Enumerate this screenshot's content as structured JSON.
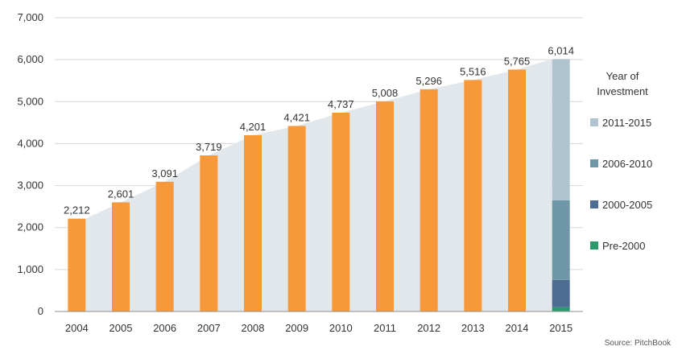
{
  "source_note": "Source: PitchBook",
  "legend_title_line1": "Year of",
  "legend_title_line2": "Investment",
  "colors": {
    "bar": "#F7993B",
    "area": "#E1E7EA",
    "grid": "#D6D6D6",
    "axis": "#8E8E8E",
    "text": "#333333"
  },
  "chart_data": {
    "type": "bar",
    "title": "",
    "xlabel": "",
    "ylabel": "",
    "ylim": [
      0,
      7000
    ],
    "yticks": [
      0,
      1000,
      2000,
      3000,
      4000,
      5000,
      6000,
      7000
    ],
    "ytick_labels": [
      "0",
      "1,000",
      "2,000",
      "3,000",
      "4,000",
      "5,000",
      "6,000",
      "7,000"
    ],
    "grid": true,
    "legend_position": "right",
    "categories": [
      "2004",
      "2005",
      "2006",
      "2007",
      "2008",
      "2009",
      "2010",
      "2011",
      "2012",
      "2013",
      "2014",
      "2015"
    ],
    "values": [
      2212,
      2601,
      3091,
      3719,
      4201,
      4421,
      4737,
      5008,
      5296,
      5516,
      5765,
      6014
    ],
    "data_labels": [
      "2,212",
      "2,601",
      "3,091",
      "3,719",
      "4,201",
      "4,421",
      "4,737",
      "5,008",
      "5,296",
      "5,516",
      "5,765",
      "6,014"
    ],
    "background_area": "cumulative total shown as shaded area behind bars",
    "stacked_breakdown": {
      "category": "2015",
      "series": [
        {
          "name": "Pre-2000",
          "value": 100,
          "color": "#2A9A6A"
        },
        {
          "name": "2000-2005",
          "value": 650,
          "color": "#4C6C92"
        },
        {
          "name": "2006-2010",
          "value": 1900,
          "color": "#6E98A8"
        },
        {
          "name": "2011-2015",
          "value": 3364,
          "color": "#AFC4CF"
        }
      ]
    }
  }
}
